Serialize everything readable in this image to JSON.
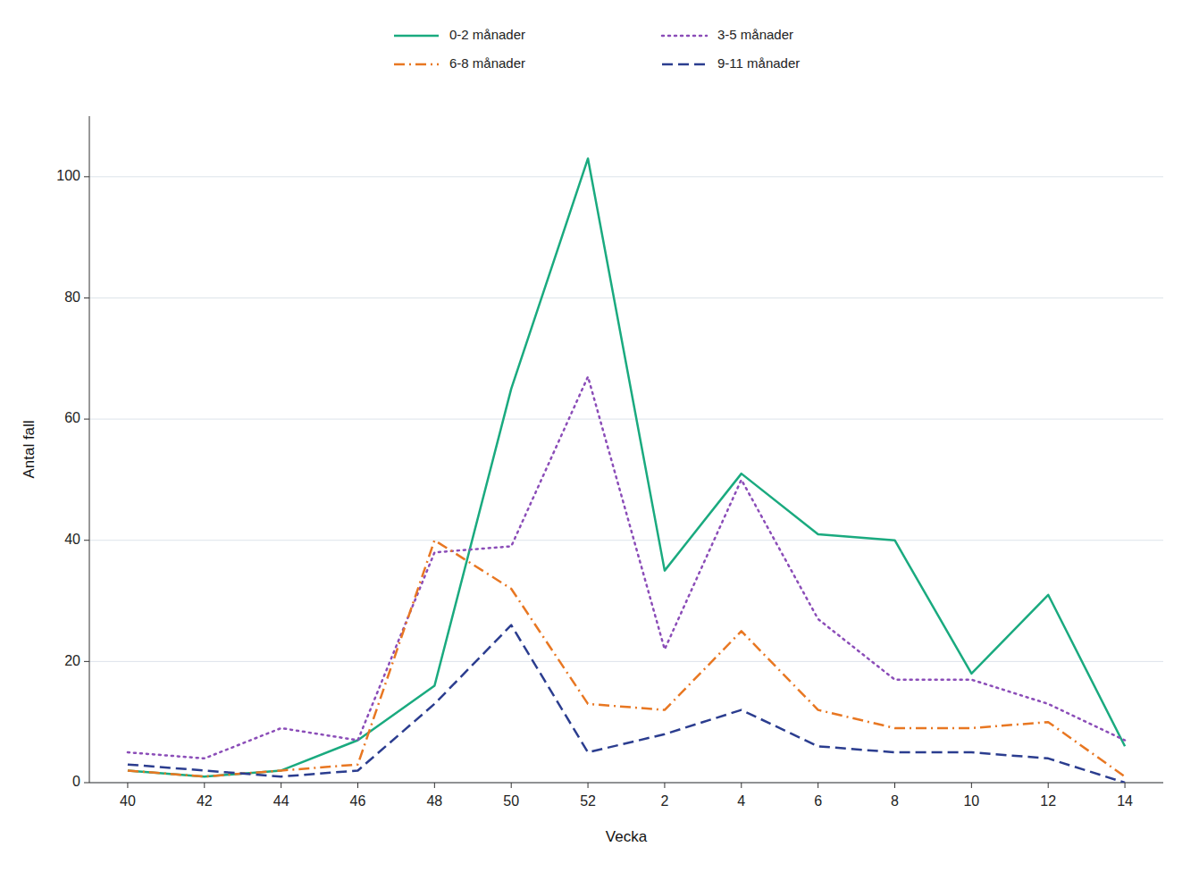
{
  "chart_data": {
    "type": "line",
    "categories": [
      "40",
      "42",
      "44",
      "46",
      "48",
      "50",
      "52",
      "2",
      "4",
      "6",
      "8",
      "10",
      "12",
      "14"
    ],
    "series": [
      {
        "name": "0-2 månader",
        "color": "#1aaa7f",
        "line_style": "solid",
        "values": [
          2,
          1,
          2,
          7,
          16,
          65,
          103,
          35,
          51,
          41,
          40,
          18,
          31,
          6
        ]
      },
      {
        "name": "3-5 månader",
        "color": "#8b4db8",
        "line_style": "dotted",
        "values": [
          5,
          4,
          9,
          7,
          38,
          39,
          67,
          22,
          50,
          27,
          17,
          17,
          13,
          7
        ]
      },
      {
        "name": "6-8 månader",
        "color": "#e87722",
        "line_style": "dashdot",
        "values": [
          2,
          1,
          2,
          3,
          40,
          32,
          13,
          12,
          25,
          12,
          9,
          9,
          10,
          1
        ]
      },
      {
        "name": "9-11 månader",
        "color": "#2b3d8f",
        "line_style": "dashed",
        "values": [
          3,
          2,
          1,
          2,
          13,
          26,
          5,
          8,
          12,
          6,
          5,
          5,
          4,
          0
        ]
      }
    ],
    "xlabel": "Vecka",
    "ylabel": "Antal fall",
    "ylim": [
      0,
      110
    ],
    "yticks": [
      0,
      20,
      40,
      60,
      80,
      100
    ],
    "grid": true,
    "legend": "top"
  }
}
